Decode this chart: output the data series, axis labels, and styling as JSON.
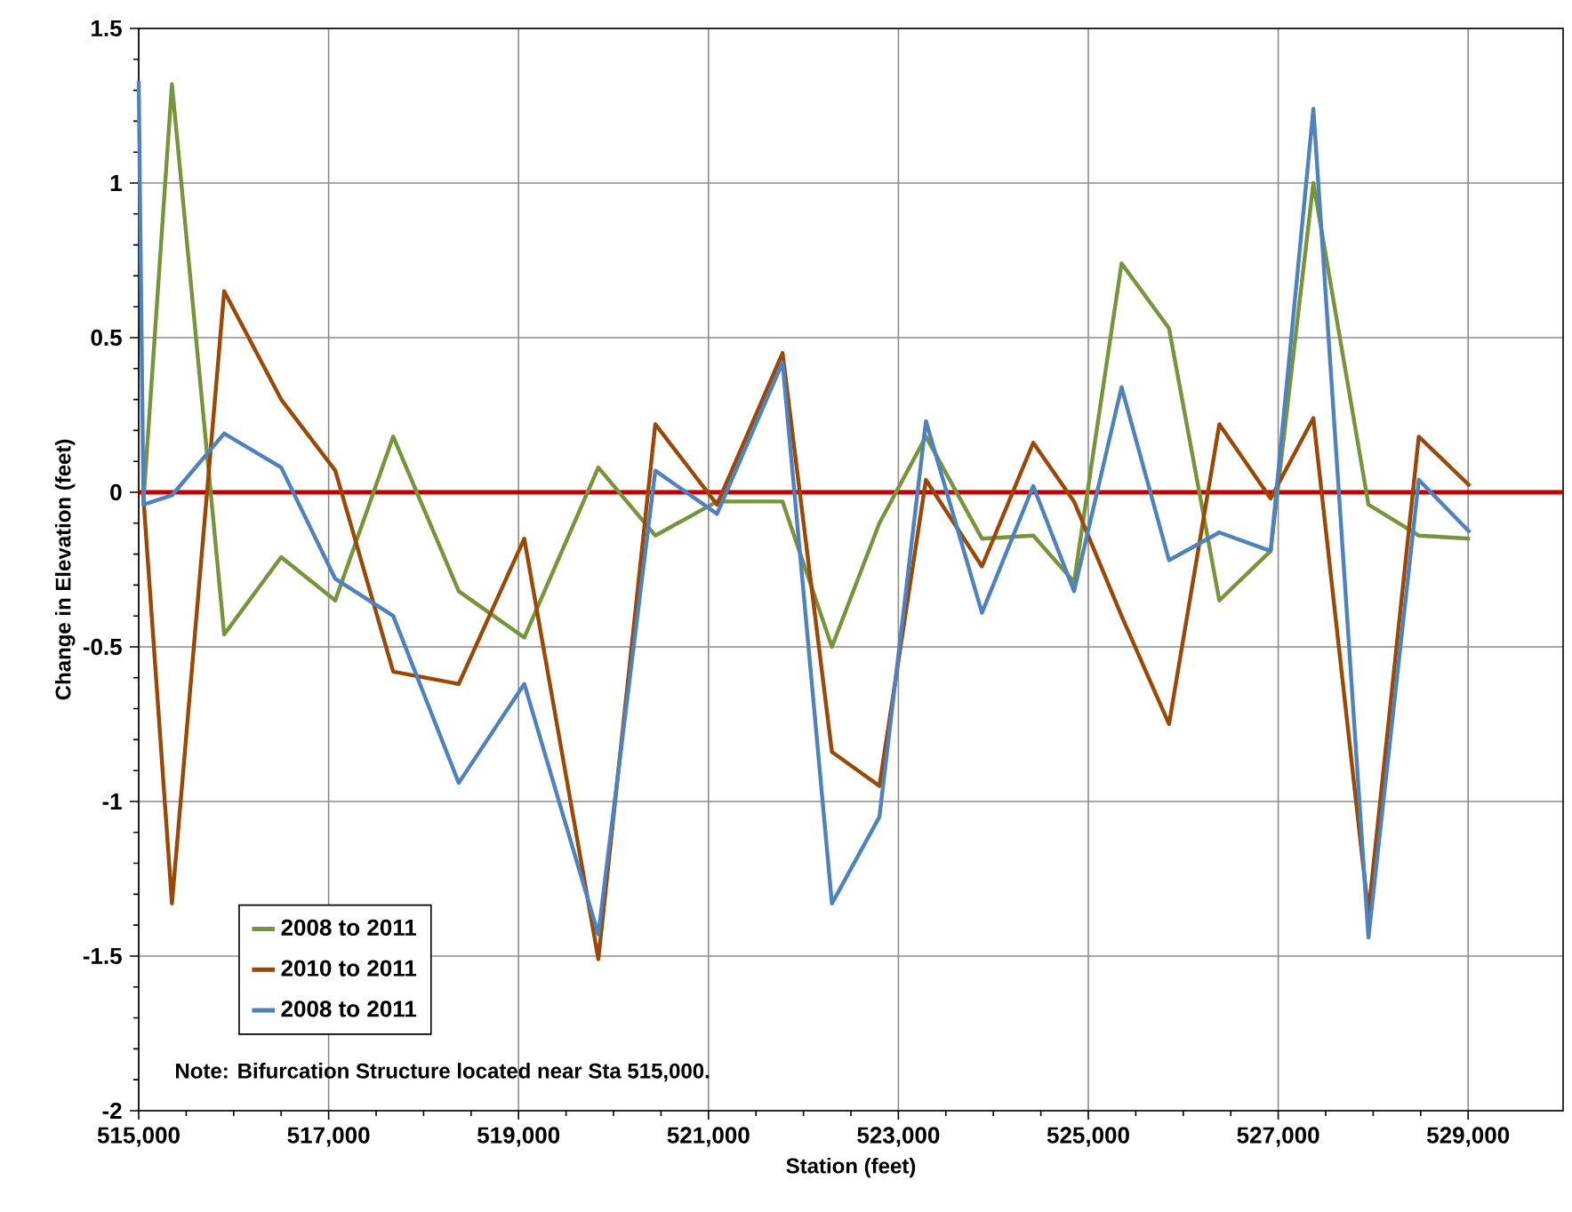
{
  "chart_data": {
    "type": "line",
    "xlabel": "Station (feet)",
    "ylabel": "Change in Elevation (feet)",
    "xlim": [
      515000,
      530000
    ],
    "ylim": [
      -2,
      1.5
    ],
    "xticks": [
      {
        "value": 515000,
        "label": "515,000"
      },
      {
        "value": 517000,
        "label": "517,000"
      },
      {
        "value": 519000,
        "label": "519,000"
      },
      {
        "value": 521000,
        "label": "521,000"
      },
      {
        "value": 523000,
        "label": "523,000"
      },
      {
        "value": 525000,
        "label": "525,000"
      },
      {
        "value": 527000,
        "label": "527,000"
      },
      {
        "value": 529000,
        "label": "529,000"
      }
    ],
    "yticks": [
      -2,
      -1.5,
      -1,
      -0.5,
      0,
      0.5,
      1,
      1.5
    ],
    "grid": true,
    "legend": "bottom left",
    "marker": "none",
    "line_style": "solid",
    "x": [
      515050,
      515350,
      515900,
      516500,
      517070,
      517680,
      518370,
      519060,
      519840,
      520440,
      521090,
      521780,
      522300,
      522800,
      523290,
      523880,
      524420,
      524850,
      525350,
      525850,
      526380,
      526920,
      527370,
      527950,
      528480,
      529020
    ],
    "series": [
      {
        "name": "2008 to 2011",
        "color": "#77933c",
        "values": [
          -0.03,
          1.32,
          -0.46,
          -0.21,
          -0.35,
          0.18,
          -0.32,
          -0.47,
          0.08,
          -0.14,
          -0.03,
          -0.03,
          -0.5,
          -0.1,
          0.18,
          -0.15,
          -0.14,
          -0.29,
          0.74,
          0.53,
          -0.35,
          -0.19,
          1.0,
          -0.04,
          -0.14,
          -0.15
        ]
      },
      {
        "name": "2010 to 2011",
        "color": "#984807",
        "values": [
          -0.02,
          -1.33,
          0.65,
          0.3,
          0.07,
          -0.58,
          -0.62,
          -0.15,
          -1.51,
          0.22,
          -0.04,
          0.45,
          -0.84,
          -0.95,
          0.04,
          -0.24,
          0.16,
          -0.03,
          -0.4,
          -0.75,
          0.22,
          -0.02,
          0.24,
          -1.36,
          0.18,
          0.02
        ]
      },
      {
        "name": "2008 to 2011",
        "color": "#4f81bd",
        "x": [
          515000,
          515050,
          515350,
          515900,
          516500,
          517070,
          517680,
          518370,
          519060,
          519840,
          520440,
          521090,
          521780,
          522300,
          522800,
          523290,
          523880,
          524420,
          524850,
          525350,
          525850,
          526380,
          526920,
          527370,
          527950,
          528480,
          529020
        ],
        "values": [
          1.33,
          -0.04,
          -0.01,
          0.19,
          0.08,
          -0.28,
          -0.4,
          -0.94,
          -0.62,
          -1.43,
          0.07,
          -0.07,
          0.42,
          -1.33,
          -1.05,
          0.23,
          -0.39,
          0.02,
          -0.32,
          0.34,
          -0.22,
          -0.13,
          -0.19,
          1.24,
          -1.44,
          0.04,
          -0.13
        ]
      }
    ],
    "ref_lines": [
      {
        "axis": "y",
        "value": 0,
        "color": "#c00000"
      }
    ],
    "annotations": [
      "Note:  Bifurcation Structure located near Sta 515,000."
    ]
  }
}
